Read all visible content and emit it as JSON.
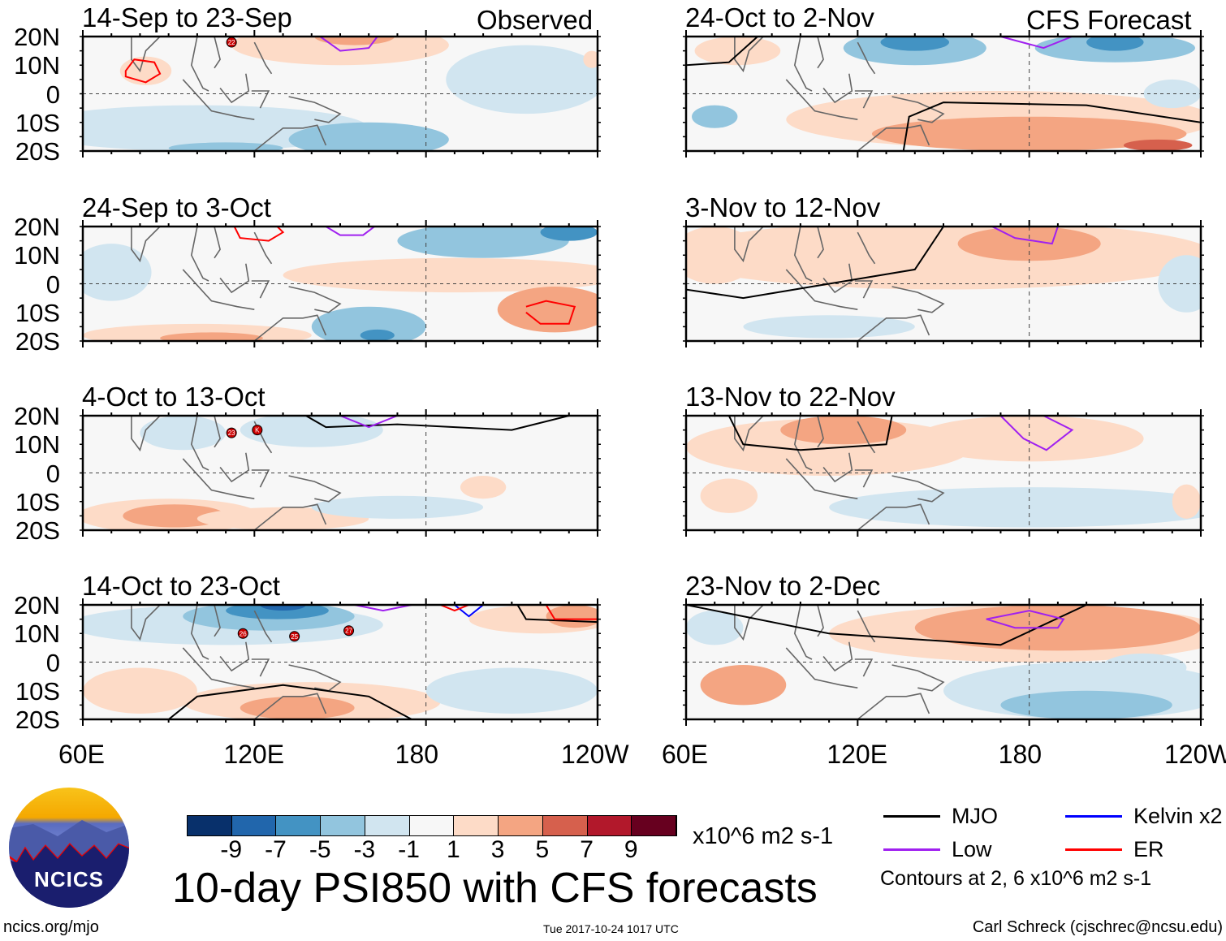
{
  "chart_data": {
    "type": "heatmap",
    "title": "10-day PSI850 with CFS forecasts",
    "units": "x10^6 m2 s-1",
    "lat_ticks": [
      "20N",
      "10N",
      "0",
      "10S",
      "20S"
    ],
    "lon_ticks": [
      "60E",
      "120E",
      "180",
      "120W"
    ],
    "xlim_deg_east": [
      60,
      240
    ],
    "ylim_deg": [
      -20,
      20
    ],
    "columns": [
      {
        "label": "Observed",
        "panels": [
          {
            "title": "14-Sep to 23-Sep",
            "storms": [
              "22"
            ]
          },
          {
            "title": "24-Sep to 3-Oct",
            "storms": []
          },
          {
            "title": "4-Oct to 13-Oct",
            "storms": [
              "23",
              "K"
            ]
          },
          {
            "title": "14-Oct to 23-Oct",
            "storms": [
              "26",
              "25",
              "27"
            ]
          }
        ]
      },
      {
        "label": "CFS Forecast",
        "panels": [
          {
            "title": "24-Oct to 2-Nov",
            "storms": []
          },
          {
            "title": "3-Nov to 12-Nov",
            "storms": []
          },
          {
            "title": "13-Nov to 22-Nov",
            "storms": []
          },
          {
            "title": "23-Nov to 2-Dec",
            "storms": []
          }
        ]
      }
    ],
    "colorbar": {
      "labels": [
        "-9",
        "-7",
        "-5",
        "-3",
        "-1",
        "1",
        "3",
        "5",
        "7",
        "9"
      ],
      "colors": [
        "#08306b",
        "#2166ac",
        "#4393c3",
        "#92c5de",
        "#d1e5f0",
        "#f7f7f7",
        "#fddbc7",
        "#f4a582",
        "#d6604d",
        "#b2182b",
        "#67001f"
      ]
    },
    "legend": [
      {
        "label": "MJO",
        "color": "#000000"
      },
      {
        "label": "Kelvin x2",
        "color": "#0000ff"
      },
      {
        "label": "Low",
        "color": "#a020f0"
      },
      {
        "label": "ER",
        "color": "#ff0000"
      }
    ],
    "contour_note": "Contours at 2, 6 x10^6 m2 s-1"
  },
  "footer": {
    "logo_text": "NCICS",
    "url": "ncics.org/mjo",
    "timestamp": "Tue 2017-10-24 1017 UTC",
    "author": "Carl Schreck (cjschrec@ncsu.edu)"
  }
}
